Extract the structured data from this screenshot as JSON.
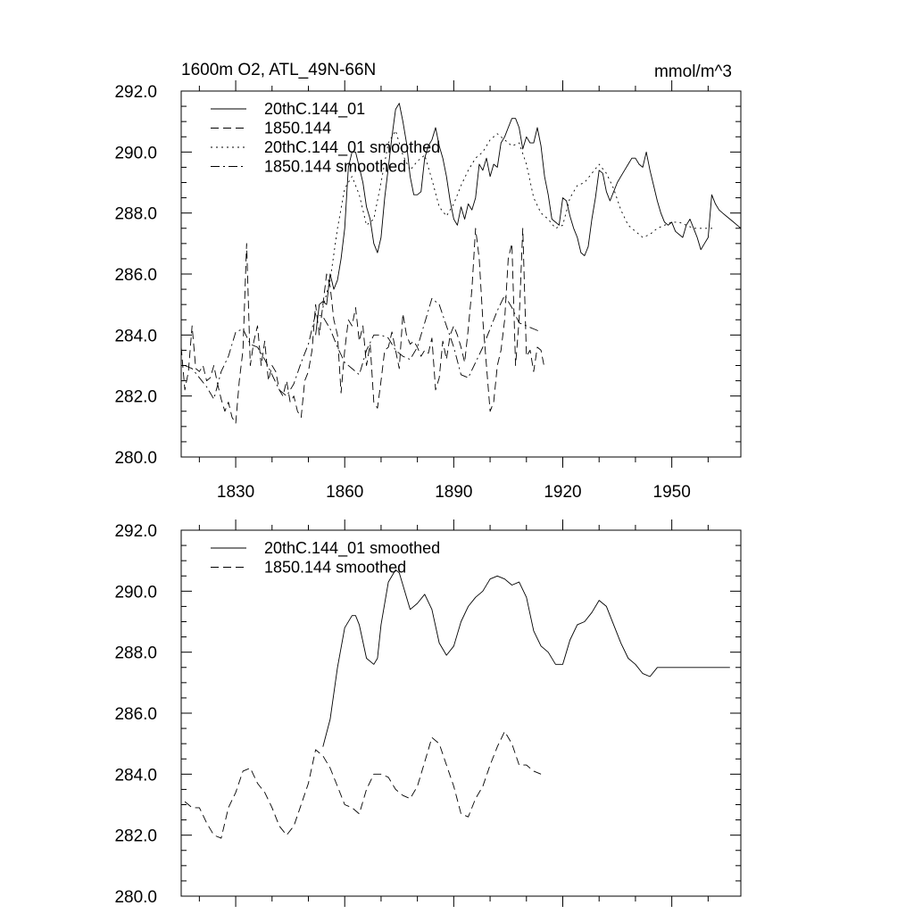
{
  "chart_data": [
    {
      "type": "line",
      "title_left": "1600m O2, ATL_49N-66N",
      "title_right": "mmol/m^3",
      "xlim": [
        1815,
        1969
      ],
      "ylim": [
        280.0,
        292.0
      ],
      "y_ticks": [
        "280.0",
        "282.0",
        "284.0",
        "286.0",
        "288.0",
        "290.0",
        "292.0"
      ],
      "x_ticks": [
        "1830",
        "1860",
        "1890",
        "1920",
        "1950"
      ],
      "legend_position": "top-left",
      "series": [
        {
          "name": "20thC.144_01",
          "style": "solid",
          "x": [
            1852,
            1853,
            1854,
            1855,
            1856,
            1857,
            1858,
            1859,
            1860,
            1861,
            1862,
            1863,
            1864,
            1865,
            1866,
            1867,
            1868,
            1869,
            1870,
            1871,
            1872,
            1873,
            1874,
            1875,
            1876,
            1877,
            1878,
            1879,
            1880,
            1881,
            1882,
            1883,
            1884,
            1885,
            1886,
            1887,
            1888,
            1889,
            1890,
            1891,
            1892,
            1893,
            1894,
            1895,
            1896,
            1897,
            1898,
            1899,
            1900,
            1901,
            1902,
            1903,
            1904,
            1905,
            1906,
            1907,
            1908,
            1909,
            1910,
            1911,
            1912,
            1913,
            1914,
            1915,
            1916,
            1917,
            1918,
            1919,
            1920,
            1921,
            1922,
            1923,
            1924,
            1925,
            1926,
            1927,
            1928,
            1929,
            1930,
            1931,
            1932,
            1933,
            1934,
            1935,
            1936,
            1937,
            1938,
            1939,
            1940,
            1941,
            1942,
            1943,
            1944,
            1945,
            1946,
            1947,
            1948,
            1949,
            1950,
            1951,
            1952,
            1953,
            1954,
            1955,
            1956,
            1957,
            1958,
            1959,
            1960,
            1961,
            1962,
            1963,
            1964,
            1965,
            1966,
            1967,
            1968,
            1969
          ],
          "values": [
            284.0,
            285.0,
            285.1,
            285.0,
            286.0,
            285.5,
            285.8,
            286.5,
            287.5,
            289.5,
            290.0,
            290.0,
            289.5,
            289.0,
            288.2,
            287.8,
            287.0,
            286.7,
            287.2,
            288.5,
            289.5,
            290.5,
            291.4,
            291.6,
            291.0,
            290.3,
            289.2,
            288.6,
            288.6,
            288.7,
            289.8,
            290.2,
            290.4,
            290.8,
            290.2,
            289.8,
            289.2,
            288.4,
            287.8,
            287.6,
            288.2,
            287.8,
            288.3,
            288.1,
            288.5,
            289.6,
            289.4,
            289.8,
            289.2,
            289.6,
            289.5,
            290.3,
            290.5,
            290.8,
            291.1,
            291.1,
            290.8,
            290.1,
            290.5,
            290.3,
            290.3,
            290.8,
            290.2,
            289.2,
            288.6,
            287.8,
            287.7,
            287.6,
            288.5,
            288.4,
            287.9,
            287.5,
            287.2,
            286.7,
            286.6,
            286.9,
            287.8,
            288.5,
            289.4,
            289.3,
            288.7,
            288.4,
            288.7,
            289.0,
            289.2,
            289.4,
            289.6,
            289.8,
            289.8,
            289.6,
            289.5,
            290.0,
            289.4,
            288.9,
            288.4,
            288.0,
            287.7,
            287.6,
            287.7,
            287.4,
            287.3,
            287.2,
            287.6,
            287.8,
            287.5,
            287.2,
            286.8,
            287.0,
            287.2,
            288.6,
            288.3,
            288.1,
            288.0,
            287.9,
            287.8,
            287.7,
            287.6,
            287.5
          ]
        },
        {
          "name": "1850.144",
          "style": "dashed",
          "x": [
            1815,
            1816,
            1817,
            1818,
            1819,
            1820,
            1821,
            1822,
            1823,
            1824,
            1825,
            1826,
            1827,
            1828,
            1829,
            1830,
            1831,
            1832,
            1833,
            1834,
            1835,
            1836,
            1837,
            1838,
            1839,
            1840,
            1841,
            1842,
            1843,
            1844,
            1845,
            1846,
            1847,
            1848,
            1849,
            1850,
            1851,
            1852,
            1853,
            1854,
            1855,
            1856,
            1857,
            1858,
            1859,
            1860,
            1861,
            1862,
            1863,
            1864,
            1865,
            1866,
            1867,
            1868,
            1869,
            1870,
            1871,
            1872,
            1873,
            1874,
            1875,
            1876,
            1877,
            1878,
            1879,
            1880,
            1881,
            1882,
            1883,
            1884,
            1885,
            1886,
            1887,
            1888,
            1889,
            1890,
            1891,
            1892,
            1893,
            1894,
            1895,
            1896,
            1897,
            1898,
            1899,
            1900,
            1901,
            1902,
            1903,
            1904,
            1905,
            1906,
            1907,
            1908,
            1909,
            1910,
            1911,
            1912,
            1913,
            1914,
            1915
          ],
          "values": [
            283.6,
            282.2,
            282.8,
            284.3,
            282.9,
            282.8,
            283.0,
            282.5,
            282.6,
            283.0,
            282.4,
            281.9,
            281.5,
            281.8,
            281.3,
            281.1,
            282.5,
            283.5,
            287.0,
            283.0,
            283.8,
            284.3,
            283.0,
            283.8,
            282.5,
            283.0,
            282.8,
            282.2,
            282.0,
            282.5,
            281.8,
            282.0,
            281.5,
            281.3,
            282.5,
            282.8,
            283.5,
            285.0,
            284.0,
            285.0,
            286.0,
            285.6,
            284.5,
            284.0,
            282.1,
            283.5,
            284.5,
            284.3,
            284.9,
            283.8,
            284.3,
            283.0,
            283.7,
            281.8,
            281.6,
            282.5,
            283.5,
            283.6,
            284.1,
            283.5,
            282.9,
            284.7,
            284.0,
            283.7,
            283.8,
            283.6,
            283.3,
            283.5,
            283.4,
            283.9,
            282.2,
            282.6,
            283.8,
            283.2,
            284.0,
            284.3,
            284.0,
            283.6,
            283.1,
            284.2,
            285.5,
            287.5,
            286.5,
            284.5,
            283.0,
            281.5,
            281.8,
            283.0,
            283.5,
            284.5,
            286.5,
            287.0,
            283.0,
            284.5,
            287.5,
            283.3,
            283.5,
            282.8,
            283.6,
            283.5,
            282.9
          ]
        },
        {
          "name": "20thC.144_01 smoothed",
          "style": "dotted",
          "x": [
            1854,
            1856,
            1858,
            1860,
            1862,
            1864,
            1866,
            1868,
            1870,
            1872,
            1874,
            1876,
            1878,
            1880,
            1882,
            1884,
            1886,
            1888,
            1890,
            1892,
            1894,
            1896,
            1898,
            1900,
            1902,
            1904,
            1906,
            1908,
            1910,
            1912,
            1914,
            1916,
            1918,
            1920,
            1922,
            1924,
            1926,
            1928,
            1930,
            1932,
            1934,
            1936,
            1938,
            1940,
            1942,
            1944,
            1946,
            1948,
            1950,
            1952,
            1954,
            1956,
            1958,
            1960,
            1962
          ],
          "values": [
            284.9,
            285.8,
            287.5,
            288.8,
            289.2,
            288.6,
            287.6,
            287.8,
            289.0,
            290.3,
            290.7,
            289.9,
            289.4,
            289.7,
            289.9,
            289.1,
            288.2,
            287.9,
            288.3,
            288.9,
            289.4,
            289.8,
            290.0,
            290.4,
            290.6,
            290.4,
            290.2,
            290.3,
            289.6,
            288.5,
            288.0,
            287.8,
            287.5,
            287.6,
            288.5,
            288.9,
            289.0,
            289.3,
            289.6,
            289.3,
            288.8,
            288.1,
            287.6,
            287.4,
            287.2,
            287.3,
            287.5,
            287.6,
            287.7,
            287.7,
            287.6,
            287.5,
            287.5,
            287.5,
            287.5
          ]
        },
        {
          "name": "1850.144 smoothed",
          "style": "dashdot",
          "x": [
            1816,
            1818,
            1820,
            1822,
            1824,
            1826,
            1828,
            1830,
            1832,
            1834,
            1836,
            1838,
            1840,
            1842,
            1844,
            1846,
            1848,
            1850,
            1852,
            1854,
            1856,
            1858,
            1860,
            1862,
            1864,
            1866,
            1868,
            1870,
            1872,
            1874,
            1876,
            1878,
            1880,
            1882,
            1884,
            1886,
            1888,
            1890,
            1892,
            1894,
            1896,
            1898,
            1900,
            1902,
            1904,
            1906,
            1908,
            1910,
            1912,
            1914
          ],
          "values": [
            283.0,
            282.9,
            282.6,
            282.3,
            281.9,
            282.8,
            283.3,
            284.1,
            284.2,
            283.7,
            283.6,
            283.2,
            282.7,
            282.2,
            282.0,
            282.4,
            283.1,
            283.7,
            284.7,
            284.6,
            284.2,
            283.6,
            283.1,
            282.9,
            282.7,
            283.5,
            284.0,
            284.0,
            283.9,
            283.5,
            283.3,
            283.2,
            283.6,
            284.4,
            285.2,
            285.0,
            284.3,
            283.6,
            282.7,
            282.6,
            283.1,
            283.6,
            284.2,
            284.8,
            285.3,
            284.9,
            284.4,
            284.3,
            284.2,
            284.1
          ]
        }
      ]
    },
    {
      "type": "line",
      "xlim": [
        1815,
        1969
      ],
      "ylim": [
        280.0,
        292.0
      ],
      "y_ticks": [
        "280.0",
        "282.0",
        "284.0",
        "286.0",
        "288.0",
        "290.0",
        "292.0"
      ],
      "legend_position": "top-left",
      "series": [
        {
          "name": "20thC.144_01 smoothed",
          "style": "solid",
          "x": [
            1854,
            1856,
            1858,
            1860,
            1862,
            1863,
            1864,
            1866,
            1868,
            1869,
            1870,
            1872,
            1874,
            1875,
            1876,
            1878,
            1880,
            1882,
            1884,
            1886,
            1888,
            1890,
            1892,
            1894,
            1896,
            1898,
            1900,
            1902,
            1904,
            1906,
            1908,
            1910,
            1912,
            1914,
            1916,
            1918,
            1920,
            1922,
            1924,
            1926,
            1928,
            1930,
            1932,
            1934,
            1936,
            1938,
            1940,
            1942,
            1944,
            1946,
            1948,
            1950,
            1952,
            1954,
            1956,
            1958,
            1960,
            1962,
            1964,
            1966
          ],
          "values": [
            284.9,
            285.8,
            287.5,
            288.8,
            289.2,
            289.2,
            288.9,
            287.8,
            287.6,
            287.8,
            288.9,
            290.3,
            290.7,
            290.6,
            290.2,
            289.4,
            289.6,
            289.9,
            289.4,
            288.3,
            287.9,
            288.2,
            289.0,
            289.5,
            289.8,
            290.0,
            290.4,
            290.5,
            290.4,
            290.2,
            290.3,
            289.8,
            288.7,
            288.2,
            288.0,
            287.6,
            287.6,
            288.4,
            288.9,
            289.0,
            289.3,
            289.7,
            289.5,
            288.9,
            288.3,
            287.8,
            287.6,
            287.3,
            287.2,
            287.5,
            287.5,
            287.5,
            287.5,
            287.5,
            287.5,
            287.5,
            287.5,
            287.5,
            287.5,
            287.5
          ]
        },
        {
          "name": "1850.144 smoothed",
          "style": "dashed",
          "x": [
            1816,
            1818,
            1820,
            1822,
            1824,
            1826,
            1828,
            1830,
            1832,
            1834,
            1836,
            1838,
            1840,
            1842,
            1844,
            1846,
            1848,
            1850,
            1852,
            1854,
            1856,
            1858,
            1860,
            1862,
            1864,
            1866,
            1868,
            1870,
            1872,
            1874,
            1876,
            1878,
            1880,
            1882,
            1884,
            1886,
            1888,
            1890,
            1892,
            1894,
            1896,
            1898,
            1900,
            1902,
            1904,
            1906,
            1908,
            1910,
            1912,
            1914
          ],
          "values": [
            283.1,
            282.9,
            282.9,
            282.4,
            282.0,
            281.9,
            282.9,
            283.4,
            284.1,
            284.2,
            283.7,
            283.4,
            282.9,
            282.3,
            282.0,
            282.3,
            283.0,
            283.7,
            284.8,
            284.6,
            284.2,
            283.6,
            283.0,
            282.9,
            282.7,
            283.5,
            284.0,
            284.0,
            283.9,
            283.5,
            283.3,
            283.2,
            283.6,
            284.4,
            285.2,
            285.0,
            284.3,
            283.6,
            282.7,
            282.6,
            283.2,
            283.6,
            284.3,
            284.9,
            285.4,
            285.0,
            284.3,
            284.3,
            284.1,
            284.0
          ]
        }
      ]
    }
  ]
}
